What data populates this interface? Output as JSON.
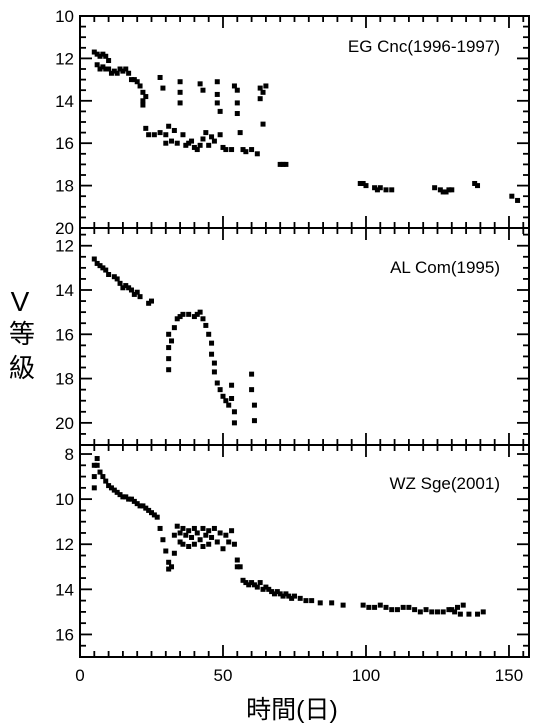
{
  "figure": {
    "ylabel_v": "V",
    "ylabel_cjk": [
      "等",
      "級"
    ],
    "xlabel": "時間(日)"
  },
  "chart_data": [
    {
      "type": "scatter",
      "title": "EG Cnc(1996-1997)",
      "xlim": [
        0,
        157
      ],
      "ylim": [
        20,
        10
      ],
      "y_inverted": true,
      "yticks": [
        10,
        12,
        14,
        16,
        18,
        20
      ],
      "series": [
        {
          "name": "EG Cnc(1996-1997)",
          "points": [
            [
              5,
              11.7
            ],
            [
              6,
              11.8
            ],
            [
              7,
              11.9
            ],
            [
              8,
              11.8
            ],
            [
              9,
              11.9
            ],
            [
              10,
              12.1
            ],
            [
              6,
              12.3
            ],
            [
              7,
              12.5
            ],
            [
              8,
              12.4
            ],
            [
              9,
              12.5
            ],
            [
              10,
              12.5
            ],
            [
              11,
              12.7
            ],
            [
              12,
              12.6
            ],
            [
              13,
              12.7
            ],
            [
              14,
              12.5
            ],
            [
              15,
              12.6
            ],
            [
              16,
              12.5
            ],
            [
              17,
              12.7
            ],
            [
              18,
              13.0
            ],
            [
              19,
              13.0
            ],
            [
              20,
              13.1
            ],
            [
              21,
              13.3
            ],
            [
              22,
              13.6
            ],
            [
              22,
              14.0
            ],
            [
              22,
              14.2
            ],
            [
              23,
              13.8
            ],
            [
              23,
              15.3
            ],
            [
              24,
              15.6
            ],
            [
              26,
              15.6
            ],
            [
              28,
              15.5
            ],
            [
              30,
              15.6
            ],
            [
              28,
              12.9
            ],
            [
              29,
              13.4
            ],
            [
              30,
              16.0
            ],
            [
              31,
              15.2
            ],
            [
              32,
              15.9
            ],
            [
              33,
              15.4
            ],
            [
              34,
              16.0
            ],
            [
              35,
              13.1
            ],
            [
              35,
              13.6
            ],
            [
              35,
              14.1
            ],
            [
              36,
              15.6
            ],
            [
              37,
              16.1
            ],
            [
              38,
              16.0
            ],
            [
              39,
              15.9
            ],
            [
              40,
              16.2
            ],
            [
              41,
              16.3
            ],
            [
              42,
              16.1
            ],
            [
              42,
              13.2
            ],
            [
              43,
              13.5
            ],
            [
              43,
              15.8
            ],
            [
              44,
              15.5
            ],
            [
              45,
              16.1
            ],
            [
              46,
              15.7
            ],
            [
              47,
              15.9
            ],
            [
              48,
              13.1
            ],
            [
              48,
              13.7
            ],
            [
              48,
              14.1
            ],
            [
              49,
              14.5
            ],
            [
              49,
              15.6
            ],
            [
              50,
              16.2
            ],
            [
              51,
              16.3
            ],
            [
              53,
              16.3
            ],
            [
              54,
              13.3
            ],
            [
              55,
              13.5
            ],
            [
              55,
              14.1
            ],
            [
              55,
              14.6
            ],
            [
              56,
              15.5
            ],
            [
              57,
              16.3
            ],
            [
              58,
              16.4
            ],
            [
              60,
              16.3
            ],
            [
              62,
              16.5
            ],
            [
              63,
              13.4
            ],
            [
              63,
              13.9
            ],
            [
              64,
              15.1
            ],
            [
              64,
              13.6
            ],
            [
              65,
              13.3
            ],
            [
              70,
              17.0
            ],
            [
              71,
              17.0
            ],
            [
              72,
              17.0
            ],
            [
              98,
              17.9
            ],
            [
              99,
              17.9
            ],
            [
              100,
              18.0
            ],
            [
              103,
              18.1
            ],
            [
              104,
              18.2
            ],
            [
              105,
              18.1
            ],
            [
              107,
              18.2
            ],
            [
              109,
              18.2
            ],
            [
              124,
              18.1
            ],
            [
              126,
              18.2
            ],
            [
              127,
              18.3
            ],
            [
              128,
              18.3
            ],
            [
              129,
              18.2
            ],
            [
              130,
              18.2
            ],
            [
              138,
              17.9
            ],
            [
              139,
              18.0
            ],
            [
              151,
              18.5
            ],
            [
              153,
              18.7
            ]
          ]
        }
      ]
    },
    {
      "type": "scatter",
      "title": "AL Com(1995)",
      "xlim": [
        0,
        157
      ],
      "ylim": [
        21,
        11.2
      ],
      "y_inverted": true,
      "yticks": [
        12,
        14,
        16,
        18,
        20
      ],
      "series": [
        {
          "name": "AL Com(1995)",
          "points": [
            [
              5,
              12.6
            ],
            [
              6,
              12.8
            ],
            [
              7,
              12.9
            ],
            [
              8,
              13.0
            ],
            [
              9,
              13.1
            ],
            [
              10,
              13.3
            ],
            [
              12,
              13.4
            ],
            [
              13,
              13.5
            ],
            [
              14,
              13.7
            ],
            [
              15,
              13.9
            ],
            [
              16,
              13.8
            ],
            [
              17,
              13.9
            ],
            [
              18,
              14.0
            ],
            [
              19,
              14.2
            ],
            [
              20,
              14.1
            ],
            [
              21,
              14.3
            ],
            [
              24,
              14.6
            ],
            [
              25,
              14.5
            ],
            [
              31,
              16.0
            ],
            [
              31,
              16.6
            ],
            [
              31,
              17.1
            ],
            [
              31,
              17.6
            ],
            [
              32,
              16.3
            ],
            [
              33,
              15.7
            ],
            [
              34,
              15.3
            ],
            [
              35,
              15.2
            ],
            [
              36,
              15.1
            ],
            [
              38,
              15.1
            ],
            [
              40,
              15.2
            ],
            [
              41,
              15.1
            ],
            [
              42,
              15.0
            ],
            [
              43,
              15.3
            ],
            [
              44,
              15.6
            ],
            [
              45,
              16.0
            ],
            [
              46,
              16.4
            ],
            [
              46,
              16.9
            ],
            [
              47,
              17.3
            ],
            [
              47,
              17.7
            ],
            [
              48,
              18.2
            ],
            [
              49,
              18.5
            ],
            [
              50,
              18.8
            ],
            [
              51,
              19.0
            ],
            [
              52,
              19.2
            ],
            [
              53,
              18.3
            ],
            [
              53,
              18.9
            ],
            [
              54,
              19.5
            ],
            [
              54,
              20.0
            ],
            [
              60,
              17.8
            ],
            [
              60,
              18.5
            ],
            [
              61,
              19.2
            ],
            [
              61,
              19.9
            ]
          ]
        }
      ]
    },
    {
      "type": "scatter",
      "title": "WZ Sge(2001)",
      "xlim": [
        0,
        157
      ],
      "ylim": [
        17,
        7.6
      ],
      "y_inverted": true,
      "yticks": [
        8,
        10,
        12,
        14,
        16
      ],
      "series": [
        {
          "name": "WZ Sge(2001)",
          "points": [
            [
              5,
              9.5
            ],
            [
              5,
              9.0
            ],
            [
              5,
              8.5
            ],
            [
              6,
              8.2
            ],
            [
              6,
              8.5
            ],
            [
              7,
              8.8
            ],
            [
              8,
              9.0
            ],
            [
              9,
              9.2
            ],
            [
              10,
              9.4
            ],
            [
              11,
              9.5
            ],
            [
              12,
              9.6
            ],
            [
              13,
              9.7
            ],
            [
              14,
              9.8
            ],
            [
              15,
              9.9
            ],
            [
              16,
              9.9
            ],
            [
              17,
              10.0
            ],
            [
              18,
              10.0
            ],
            [
              19,
              10.1
            ],
            [
              20,
              10.2
            ],
            [
              21,
              10.3
            ],
            [
              22,
              10.3
            ],
            [
              23,
              10.4
            ],
            [
              24,
              10.5
            ],
            [
              25,
              10.6
            ],
            [
              26,
              10.7
            ],
            [
              27,
              10.8
            ],
            [
              28,
              11.3
            ],
            [
              29,
              11.8
            ],
            [
              30,
              12.3
            ],
            [
              31,
              12.8
            ],
            [
              31,
              13.1
            ],
            [
              32,
              13.0
            ],
            [
              33,
              12.4
            ],
            [
              33,
              11.6
            ],
            [
              34,
              11.2
            ],
            [
              35,
              11.5
            ],
            [
              35,
              11.9
            ],
            [
              36,
              11.3
            ],
            [
              36,
              12.0
            ],
            [
              37,
              11.6
            ],
            [
              38,
              11.4
            ],
            [
              38,
              12.1
            ],
            [
              39,
              11.7
            ],
            [
              40,
              11.3
            ],
            [
              40,
              12.0
            ],
            [
              41,
              11.5
            ],
            [
              42,
              11.8
            ],
            [
              43,
              11.3
            ],
            [
              43,
              12.1
            ],
            [
              44,
              11.6
            ],
            [
              45,
              11.4
            ],
            [
              45,
              12.0
            ],
            [
              46,
              11.7
            ],
            [
              47,
              11.3
            ],
            [
              48,
              11.9
            ],
            [
              49,
              11.5
            ],
            [
              50,
              12.2
            ],
            [
              51,
              11.6
            ],
            [
              52,
              11.9
            ],
            [
              53,
              11.4
            ],
            [
              54,
              12.0
            ],
            [
              55,
              12.7
            ],
            [
              55,
              13.0
            ],
            [
              56,
              13.0
            ],
            [
              57,
              13.6
            ],
            [
              58,
              13.7
            ],
            [
              59,
              13.8
            ],
            [
              60,
              13.7
            ],
            [
              61,
              13.8
            ],
            [
              62,
              13.9
            ],
            [
              63,
              13.7
            ],
            [
              64,
              14.0
            ],
            [
              65,
              13.9
            ],
            [
              66,
              14.0
            ],
            [
              67,
              14.1
            ],
            [
              68,
              14.2
            ],
            [
              69,
              14.1
            ],
            [
              70,
              14.2
            ],
            [
              71,
              14.3
            ],
            [
              72,
              14.2
            ],
            [
              73,
              14.3
            ],
            [
              74,
              14.4
            ],
            [
              75,
              14.3
            ],
            [
              77,
              14.4
            ],
            [
              79,
              14.5
            ],
            [
              81,
              14.5
            ],
            [
              84,
              14.6
            ],
            [
              88,
              14.6
            ],
            [
              92,
              14.7
            ],
            [
              99,
              14.7
            ],
            [
              101,
              14.8
            ],
            [
              103,
              14.8
            ],
            [
              105,
              14.7
            ],
            [
              107,
              14.8
            ],
            [
              109,
              14.9
            ],
            [
              111,
              14.9
            ],
            [
              113,
              14.8
            ],
            [
              115,
              14.8
            ],
            [
              117,
              14.9
            ],
            [
              119,
              15.0
            ],
            [
              121,
              14.9
            ],
            [
              123,
              15.0
            ],
            [
              125,
              15.0
            ],
            [
              127,
              15.0
            ],
            [
              129,
              14.9
            ],
            [
              130,
              14.9
            ],
            [
              131,
              15.0
            ],
            [
              132,
              14.8
            ],
            [
              133,
              15.1
            ],
            [
              134,
              14.7
            ],
            [
              136,
              15.1
            ],
            [
              139,
              15.1
            ],
            [
              141,
              15.0
            ]
          ]
        }
      ]
    }
  ],
  "x_axis": {
    "ticks": [
      0,
      50,
      100,
      150
    ]
  }
}
